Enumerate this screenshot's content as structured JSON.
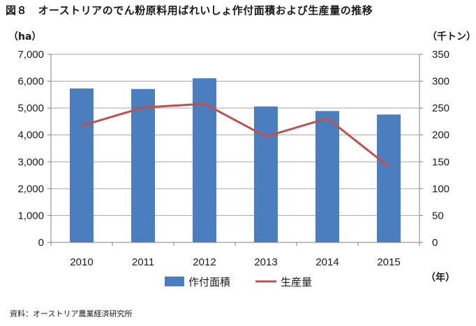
{
  "title": "図８　オーストリアのでん粉原料用ばれいしょ作付面積および生産量の推移",
  "units": {
    "left": "（ha）",
    "right": "（千トン）",
    "x": "（年）"
  },
  "source": "資料：オーストリア農業経済研究所",
  "chart_data": {
    "type": "bar",
    "categories": [
      "2010",
      "2011",
      "2012",
      "2013",
      "2014",
      "2015"
    ],
    "series": [
      {
        "name": "作付面積",
        "type": "bar",
        "axis": "left",
        "color": "#4a7ebf",
        "values": [
          5730,
          5710,
          6110,
          5060,
          4890,
          4760
        ]
      },
      {
        "name": "生産量",
        "type": "line",
        "axis": "right",
        "color": "#c0504d",
        "values": [
          217,
          251,
          258,
          197,
          231,
          141
        ]
      }
    ],
    "y_left": {
      "ylim": [
        0,
        7000
      ],
      "ticks": [
        "0",
        "1,000",
        "2,000",
        "3,000",
        "4,000",
        "5,000",
        "6,000",
        "7,000"
      ]
    },
    "y_right": {
      "ylim": [
        0,
        350
      ],
      "ticks": [
        "0",
        "50",
        "100",
        "150",
        "200",
        "250",
        "300",
        "350"
      ]
    },
    "grid": true,
    "legend": "bottom"
  }
}
